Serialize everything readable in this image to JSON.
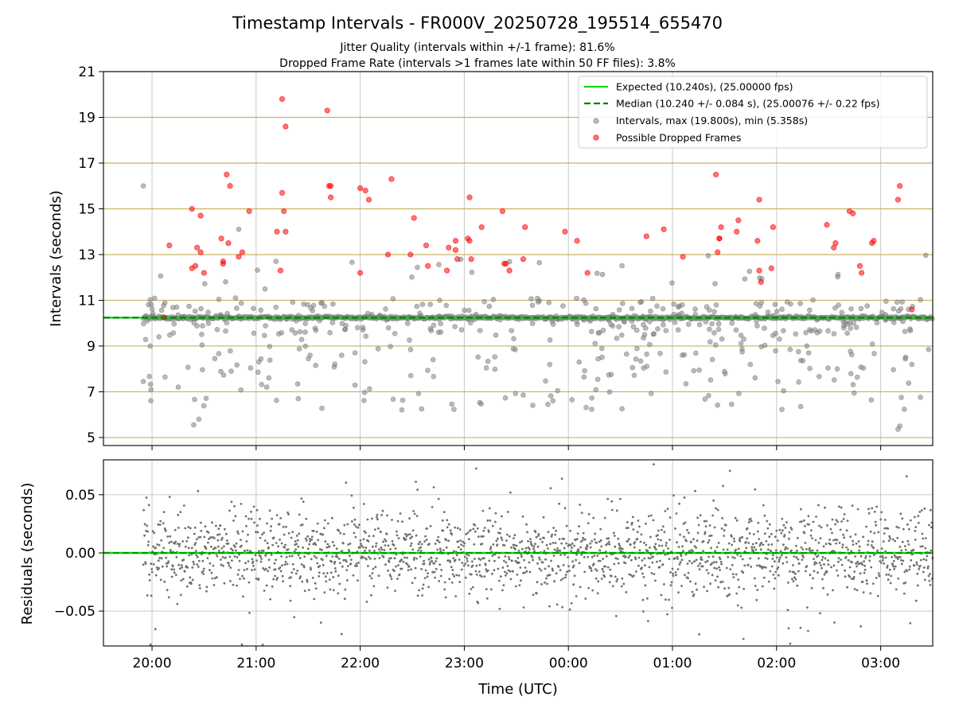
{
  "chart_data": {
    "type": "scatter",
    "title": "Timestamp Intervals - FR000V_20250728_195514_655470",
    "subtitles": [
      "Jitter Quality (intervals within +/-1 frame): 81.6%",
      "Dropped Frame Rate (intervals >1 frames late within 50 FF files): 3.8%"
    ],
    "xlabel": "Time (UTC)",
    "x_range": [
      "2025-07-28 19:32",
      "2025-07-29 03:30"
    ],
    "x_tick_labels": [
      "20:00",
      "21:00",
      "22:00",
      "23:00",
      "00:00",
      "01:00",
      "02:00",
      "03:00"
    ],
    "top_panel": {
      "ylabel": "Intervals (seconds)",
      "ylim": [
        4.65,
        21
      ],
      "y_tick_labels": [
        "5",
        "7",
        "9",
        "11",
        "13",
        "15",
        "17",
        "19",
        "21"
      ],
      "horizontal_guides": [
        5,
        7,
        9,
        11,
        13,
        15,
        17,
        19,
        21
      ],
      "expected_interval": 10.24,
      "median_interval": 10.24,
      "intervals_max": 19.8,
      "intervals_min": 5.358,
      "dropped_frames": [
        [
          "20:07",
          10.25
        ],
        [
          "20:10",
          13.4
        ],
        [
          "20:23",
          12.4
        ],
        [
          "20:23",
          15.0
        ],
        [
          "20:25",
          12.5
        ],
        [
          "20:26",
          13.3
        ],
        [
          "20:28",
          14.7
        ],
        [
          "20:28",
          13.1
        ],
        [
          "20:30",
          12.2
        ],
        [
          "20:40",
          13.7
        ],
        [
          "20:41",
          12.7
        ],
        [
          "20:41",
          12.6
        ],
        [
          "20:43",
          16.5
        ],
        [
          "20:44",
          13.5
        ],
        [
          "20:45",
          16.0
        ],
        [
          "20:50",
          12.9
        ],
        [
          "20:52",
          13.1
        ],
        [
          "20:56",
          14.9
        ],
        [
          "21:12",
          14.0
        ],
        [
          "21:14",
          12.3
        ],
        [
          "21:15",
          15.7
        ],
        [
          "21:15",
          19.8
        ],
        [
          "21:16",
          14.9
        ],
        [
          "21:17",
          18.6
        ],
        [
          "21:17",
          14.0
        ],
        [
          "21:41",
          19.3
        ],
        [
          "21:42",
          16.0
        ],
        [
          "21:43",
          16.0
        ],
        [
          "21:43",
          15.5
        ],
        [
          "22:00",
          12.2
        ],
        [
          "22:00",
          15.9
        ],
        [
          "22:03",
          15.8
        ],
        [
          "22:05",
          15.4
        ],
        [
          "22:16",
          13.0
        ],
        [
          "22:18",
          16.3
        ],
        [
          "22:29",
          13.0
        ],
        [
          "22:31",
          14.6
        ],
        [
          "22:38",
          13.4
        ],
        [
          "22:39",
          12.5
        ],
        [
          "22:50",
          12.3
        ],
        [
          "22:51",
          13.3
        ],
        [
          "22:55",
          13.6
        ],
        [
          "22:55",
          13.2
        ],
        [
          "22:56",
          12.8
        ],
        [
          "23:02",
          13.7
        ],
        [
          "23:03",
          13.6
        ],
        [
          "23:03",
          15.5
        ],
        [
          "23:04",
          12.8
        ],
        [
          "23:10",
          14.2
        ],
        [
          "23:22",
          14.9
        ],
        [
          "23:23",
          12.6
        ],
        [
          "23:24",
          12.6
        ],
        [
          "23:26",
          12.3
        ],
        [
          "23:34",
          12.8
        ],
        [
          "23:35",
          14.2
        ],
        [
          "23:58",
          14.0
        ],
        [
          "00:05",
          13.6
        ],
        [
          "00:11",
          12.2
        ],
        [
          "00:45",
          13.8
        ],
        [
          "00:55",
          14.1
        ],
        [
          "01:06",
          12.9
        ],
        [
          "01:25",
          16.5
        ],
        [
          "01:26",
          13.1
        ],
        [
          "01:27",
          13.7
        ],
        [
          "01:27",
          13.7
        ],
        [
          "01:28",
          14.2
        ],
        [
          "01:37",
          14.0
        ],
        [
          "01:38",
          14.5
        ],
        [
          "01:49",
          13.6
        ],
        [
          "01:50",
          12.3
        ],
        [
          "01:50",
          15.4
        ],
        [
          "01:51",
          11.8
        ],
        [
          "01:57",
          12.4
        ],
        [
          "01:58",
          14.2
        ],
        [
          "02:29",
          14.3
        ],
        [
          "02:33",
          13.3
        ],
        [
          "02:34",
          13.5
        ],
        [
          "02:42",
          14.9
        ],
        [
          "02:44",
          14.8
        ],
        [
          "02:48",
          12.5
        ],
        [
          "02:49",
          12.2
        ],
        [
          "02:55",
          13.5
        ],
        [
          "02:56",
          13.6
        ],
        [
          "03:10",
          15.4
        ],
        [
          "03:11",
          16.0
        ],
        [
          "03:18",
          10.6
        ]
      ]
    },
    "bottom_panel": {
      "ylabel": "Residuals (seconds)",
      "ylim": [
        -0.08,
        0.08
      ],
      "y_tick_labels": [
        "0.05",
        "0.00",
        "−0.05"
      ],
      "y_tick_values": [
        0.05,
        0.0,
        -0.05
      ],
      "expected_residual": 0.0
    },
    "legend": {
      "position": "top-right",
      "entries": [
        {
          "label": "Expected (10.240s), (25.00000 fps)",
          "color": "#00dd00",
          "style": "solid-line"
        },
        {
          "label": "Median (10.240 +/- 0.084 s), (25.00076 +/- 0.22 fps)",
          "color": "#008000",
          "style": "dashed-line"
        },
        {
          "label": "Intervals, max (19.800s), min (5.358s)",
          "color": "#808080",
          "style": "marker"
        },
        {
          "label": "Possible Dropped Frames",
          "color": "#ff0000",
          "style": "marker"
        }
      ]
    },
    "colors": {
      "expected": "#00dd00",
      "median": "#008000",
      "intervals": "#808080",
      "dropped": "#ff0000",
      "guide_line": "#c8b464",
      "grid": "#b0b0b0"
    },
    "grid": true
  }
}
